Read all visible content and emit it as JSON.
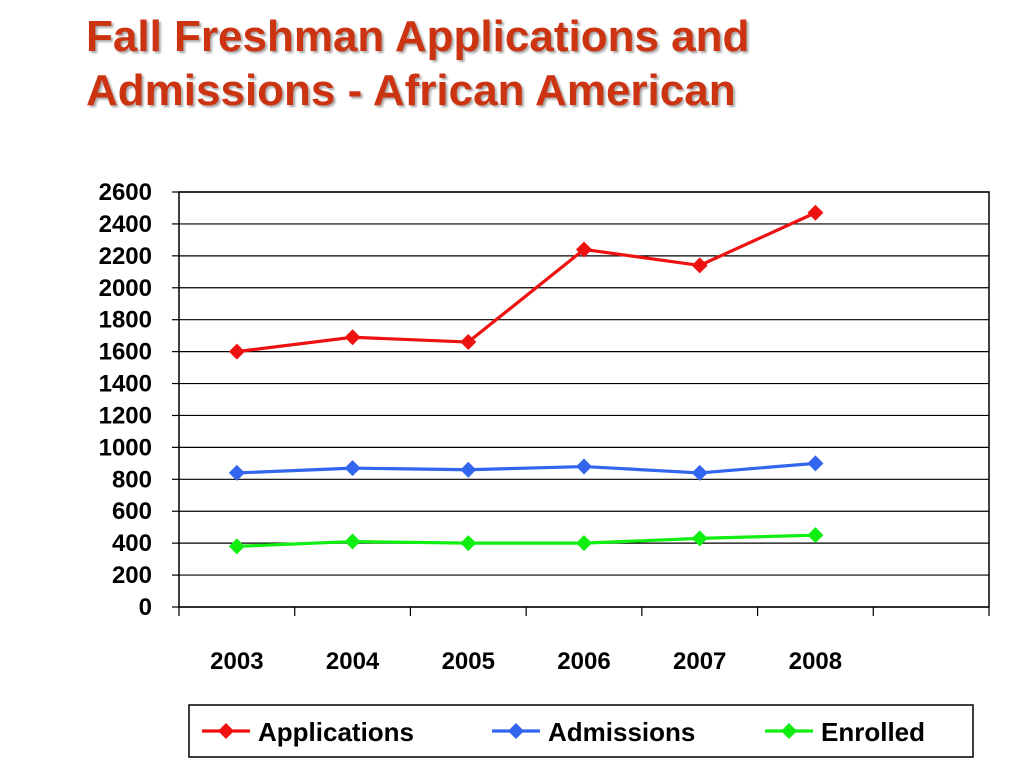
{
  "slide": {
    "title_line1": "Fall Freshman Applications and",
    "title_line2": "Admissions - African American"
  },
  "chart_data": {
    "type": "line",
    "title": "Fall Freshman Applications and Admissions - African American",
    "categories": [
      "2003",
      "2004",
      "2005",
      "2006",
      "2007",
      "2008"
    ],
    "ylim": [
      0,
      2600
    ],
    "yticks": [
      0,
      200,
      400,
      600,
      800,
      1000,
      1200,
      1400,
      1600,
      1800,
      2000,
      2200,
      2400,
      2600
    ],
    "grid": true,
    "legend_position": "bottom",
    "series": [
      {
        "name": "Applications",
        "color": "#ee1111",
        "marker": "diamond",
        "values": [
          1600,
          1690,
          1660,
          2240,
          2140,
          2470
        ]
      },
      {
        "name": "Admissions",
        "color": "#3366ee",
        "marker": "diamond",
        "values": [
          840,
          870,
          860,
          880,
          840,
          900
        ]
      },
      {
        "name": "Enrolled",
        "color": "#11ee11",
        "marker": "diamond",
        "values": [
          380,
          410,
          400,
          400,
          430,
          450
        ]
      }
    ]
  }
}
